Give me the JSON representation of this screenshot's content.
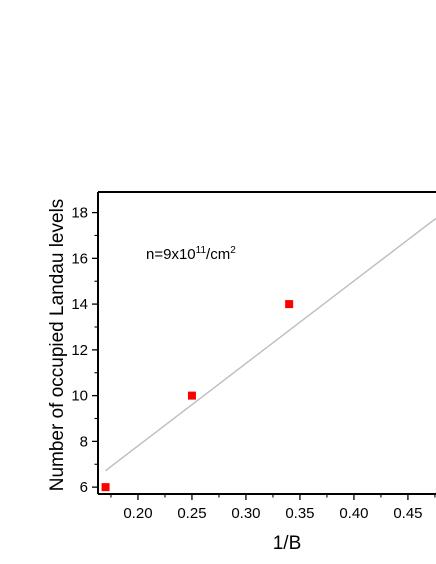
{
  "chart_data": {
    "type": "scatter",
    "xlabel": "1/B",
    "ylabel": "Number of occupied Landau levels",
    "xlim": [
      0.163,
      0.476
    ],
    "ylim": [
      5.7,
      18.9
    ],
    "x_ticks": [
      0.2,
      0.25,
      0.3,
      0.35,
      0.4,
      0.45
    ],
    "x_tick_labels": [
      "0.20",
      "0.25",
      "0.30",
      "0.35",
      "0.40",
      "0.45"
    ],
    "y_ticks": [
      6,
      8,
      10,
      12,
      14,
      16,
      18
    ],
    "y_tick_labels": [
      "6",
      "8",
      "10",
      "12",
      "14",
      "16",
      "18"
    ],
    "grid": false,
    "points": {
      "x": [
        0.17,
        0.25,
        0.34
      ],
      "y": [
        6,
        10,
        14
      ],
      "color": "#ff0000",
      "marker": "square"
    },
    "fit_line": {
      "x": [
        0.17,
        0.476
      ],
      "y": [
        6.72,
        17.75
      ],
      "color": "#bdbdbd"
    },
    "annotation": {
      "base": "n=9x10",
      "exponent": "11",
      "unit_base": "/cm",
      "unit_exponent": "2"
    }
  }
}
